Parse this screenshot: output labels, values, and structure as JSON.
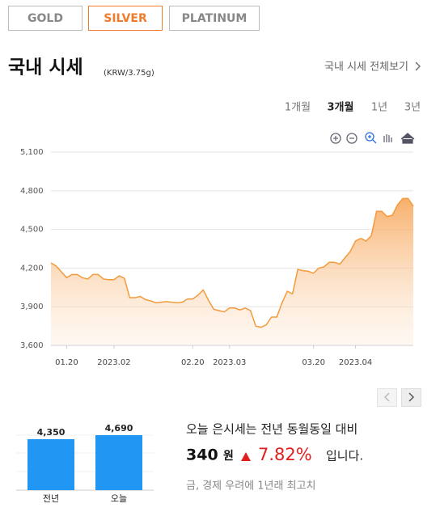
{
  "tabs": [
    "GOLD",
    "SILVER",
    "PLATINUM"
  ],
  "heading": {
    "title": "국내 시세",
    "unit": "(KRW/3.75g)",
    "link": "국내 시세 전체보기"
  },
  "periods": [
    "1개월",
    "3개월",
    "1년",
    "3년"
  ],
  "chart_data": [
    {
      "type": "area",
      "color": "#f39a3c",
      "grid": true,
      "ylim": [
        3600,
        5100
      ],
      "yticks": [
        {
          "value": 3600,
          "label": "3,600"
        },
        {
          "value": 3900,
          "label": "3,900"
        },
        {
          "value": 4200,
          "label": "4,200"
        },
        {
          "value": 4500,
          "label": "4,500"
        },
        {
          "value": 4800,
          "label": "4,800"
        },
        {
          "value": 5100,
          "label": "5,100"
        }
      ],
      "categories": [
        null,
        null,
        null,
        "01.20",
        null,
        null,
        null,
        null,
        null,
        null,
        null,
        null,
        "2023.02",
        null,
        null,
        null,
        null,
        null,
        null,
        null,
        null,
        null,
        null,
        null,
        null,
        null,
        null,
        "02.20",
        null,
        null,
        null,
        null,
        null,
        null,
        "2023.03",
        null,
        null,
        null,
        null,
        null,
        null,
        null,
        null,
        null,
        null,
        null,
        null,
        null,
        null,
        null,
        "03.20",
        null,
        null,
        null,
        null,
        null,
        null,
        null,
        "2023.04",
        null,
        null,
        null,
        null,
        null,
        null,
        null,
        null,
        null,
        null,
        null
      ],
      "values": [
        4240,
        4215,
        4170,
        4125,
        4150,
        4150,
        4125,
        4115,
        4150,
        4150,
        4115,
        4110,
        4110,
        4140,
        4120,
        3970,
        3970,
        3980,
        3955,
        3945,
        3930,
        3935,
        3940,
        3935,
        3930,
        3935,
        3960,
        3960,
        3990,
        4030,
        3950,
        3880,
        3870,
        3860,
        3890,
        3890,
        3875,
        3890,
        3870,
        3750,
        3740,
        3760,
        3820,
        3820,
        3930,
        4020,
        4000,
        4190,
        4180,
        4175,
        4160,
        4200,
        4210,
        4245,
        4245,
        4230,
        4280,
        4330,
        4410,
        4430,
        4410,
        4450,
        4640,
        4640,
        4600,
        4610,
        4690,
        4740,
        4740,
        4680
      ]
    },
    {
      "type": "bar",
      "color": "#2196f3",
      "categories": [
        "전년",
        "오늘"
      ],
      "values": [
        4350,
        4690
      ],
      "value_labels": [
        "4,350",
        "4,690"
      ]
    }
  ],
  "summary": {
    "line1": "오늘 은시세는 전년 동월동일 대비",
    "diff": "340",
    "unit": "원",
    "pct": "7.82%",
    "suffix": "입니다.",
    "headline": "금, 경제 우려에 1년래 최고치"
  }
}
